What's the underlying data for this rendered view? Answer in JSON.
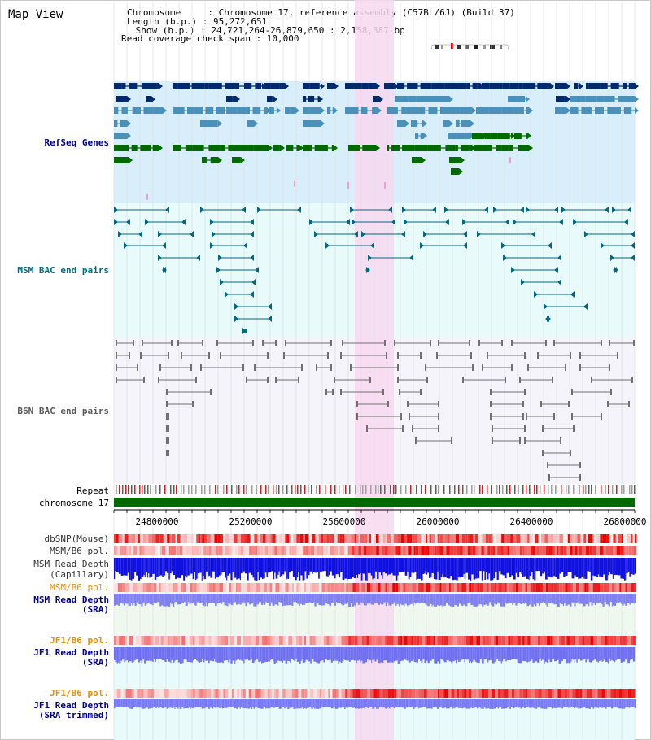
{
  "app": {
    "title": "Map View"
  },
  "info": {
    "line1": "Chromosome     : Chromosome 17, reference assembly (C57BL/6J) (Build 37)",
    "line2": "Length (b.p.) : 95,272,651",
    "line3": " Show (b.p.) : 24,721,264-26,879,650 : 2,158,387 bp",
    "line4": "Read coverage check span : 10,000"
  },
  "tracks": {
    "refseq": "RefSeq Genes",
    "msm_bac": "MSM BAC end pairs",
    "b6n_bac": "B6N BAC end pairs",
    "repeat": "Repeat",
    "chromosome": "chromosome 17",
    "dbsnp": "dbSNP(Mouse)",
    "msm_b6_pol_1": "MSM/B6 pol.",
    "msm_depth_cap_1": "MSM Read Depth",
    "msm_depth_cap_2": "(Capillary)",
    "msm_b6_pol_2": "MSM/B6 pol.",
    "msm_depth_sra_1": "MSM Read Depth",
    "msm_depth_sra_2": "(SRA)",
    "jf1_pol_1": "JF1/B6 pol.",
    "jf1_depth_1": "JF1 Read Depth",
    "jf1_depth_2": "(SRA)",
    "jf1_pol_2": "JF1/B6 pol.",
    "jf1_trim_1": "JF1 Read Depth",
    "jf1_trim_2": "(SRA trimmed)"
  },
  "axis": {
    "ticks": [
      "24800000",
      "25200000",
      "25600000",
      "26000000",
      "26400000",
      "26800000"
    ]
  },
  "colors": {
    "refseq_bg": "#d8eefa",
    "msm_bg": "#e8fafa",
    "b6n_bg": "#f4f4fa",
    "highlight": "#f8d8f0",
    "refseq_dark": "#002a6a",
    "refseq_mid": "#4a90b8",
    "refseq_green": "#006a00",
    "msm_line": "#006880",
    "b6n_line": "#707070",
    "label_blue": "#00008a",
    "label_teal": "#006a80",
    "label_gray": "#5a5a5a",
    "label_orange": "#e89000"
  }
}
